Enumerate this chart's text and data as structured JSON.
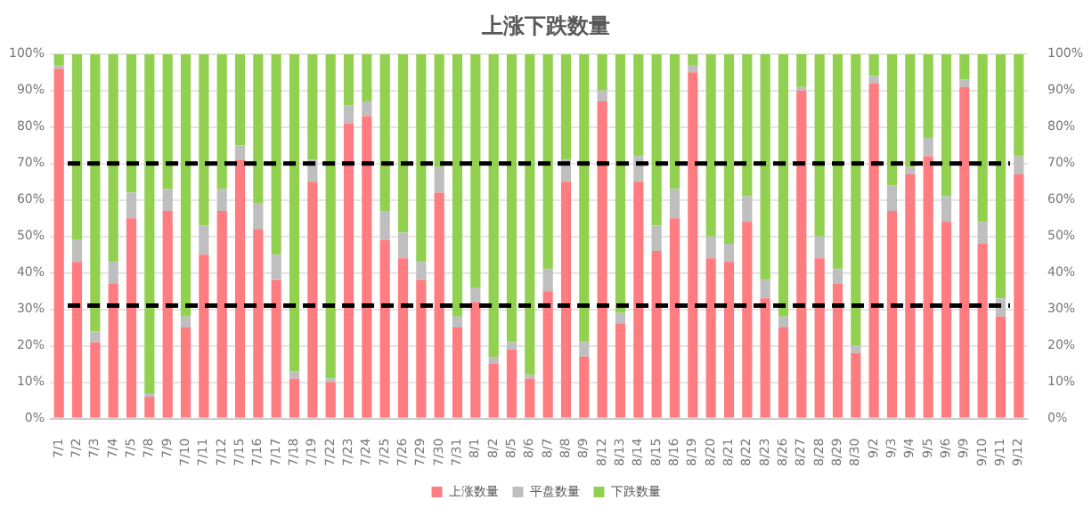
{
  "chart_data": {
    "type": "bar",
    "title": "上涨下跌数量",
    "stacked": true,
    "categories": [
      "7/1",
      "7/2",
      "7/3",
      "7/4",
      "7/5",
      "7/8",
      "7/9",
      "7/10",
      "7/11",
      "7/12",
      "7/15",
      "7/16",
      "7/17",
      "7/18",
      "7/19",
      "7/22",
      "7/23",
      "7/24",
      "7/25",
      "7/26",
      "7/29",
      "7/30",
      "7/31",
      "8/1",
      "8/2",
      "8/5",
      "8/6",
      "8/7",
      "8/8",
      "8/9",
      "8/12",
      "8/13",
      "8/14",
      "8/15",
      "8/16",
      "8/19",
      "8/20",
      "8/21",
      "8/22",
      "8/23",
      "8/26",
      "8/27",
      "8/28",
      "8/29",
      "8/30",
      "9/2",
      "9/3",
      "9/4",
      "9/5",
      "9/6",
      "9/9",
      "9/10",
      "9/11",
      "9/12"
    ],
    "series": [
      {
        "name": "上涨数量",
        "color": "#ff7c80",
        "values": [
          96,
          43,
          21,
          37,
          55,
          6,
          57,
          25,
          45,
          57,
          71,
          52,
          38,
          11,
          65,
          10,
          81,
          83,
          49,
          44,
          38,
          62,
          25,
          32,
          15,
          19,
          11,
          35,
          65,
          17,
          87,
          26,
          65,
          46,
          55,
          95,
          44,
          43,
          54,
          33,
          25,
          90,
          44,
          37,
          18,
          92,
          57,
          67,
          72,
          54,
          91,
          48,
          28,
          67
        ]
      },
      {
        "name": "平盘数量",
        "color": "#bfbfbf",
        "values": [
          1,
          6,
          3,
          6,
          7,
          1,
          6,
          3,
          8,
          6,
          4,
          7,
          7,
          2,
          6,
          1,
          5,
          4,
          8,
          7,
          5,
          7,
          3,
          4,
          2,
          2,
          1,
          6,
          6,
          4,
          3,
          3,
          7,
          7,
          8,
          2,
          6,
          5,
          7,
          5,
          3,
          1,
          6,
          4,
          2,
          2,
          7,
          2,
          5,
          7,
          2,
          6,
          5,
          5
        ]
      },
      {
        "name": "下跌数量",
        "color": "#92d050",
        "values": [
          3,
          51,
          76,
          57,
          38,
          93,
          37,
          72,
          47,
          37,
          25,
          41,
          55,
          87,
          29,
          89,
          14,
          13,
          43,
          49,
          57,
          31,
          72,
          64,
          83,
          79,
          88,
          59,
          29,
          79,
          10,
          71,
          28,
          47,
          37,
          3,
          50,
          52,
          39,
          62,
          72,
          9,
          50,
          59,
          80,
          6,
          36,
          31,
          23,
          39,
          7,
          46,
          67,
          28
        ]
      }
    ],
    "ylim": [
      0,
      100
    ],
    "yticks": [
      {
        "value": 0,
        "label": "0%"
      },
      {
        "value": 10,
        "label": "10%"
      },
      {
        "value": 20,
        "label": "20%"
      },
      {
        "value": 30,
        "label": "30%"
      },
      {
        "value": 40,
        "label": "40%"
      },
      {
        "value": 50,
        "label": "50%"
      },
      {
        "value": 60,
        "label": "60%"
      },
      {
        "value": 70,
        "label": "70%"
      },
      {
        "value": 80,
        "label": "80%"
      },
      {
        "value": 90,
        "label": "90%"
      },
      {
        "value": 100,
        "label": "100%"
      }
    ],
    "y2lim": [
      0,
      100
    ],
    "y2ticks": [
      {
        "value": 0,
        "label": "0%"
      },
      {
        "value": 10,
        "label": "10%"
      },
      {
        "value": 20,
        "label": "20%"
      },
      {
        "value": 30,
        "label": "30%"
      },
      {
        "value": 40,
        "label": "40%"
      },
      {
        "value": 50,
        "label": "50%"
      },
      {
        "value": 60,
        "label": "60%"
      },
      {
        "value": 70,
        "label": "70%"
      },
      {
        "value": 80,
        "label": "80%"
      },
      {
        "value": 90,
        "label": "90%"
      },
      {
        "value": 100,
        "label": "100%"
      }
    ],
    "ref_lines": [
      {
        "axis": "y",
        "value": 70,
        "color": "#000000",
        "line_style": "dashed"
      },
      {
        "axis": "y",
        "value": 31,
        "color": "#000000",
        "line_style": "dashed"
      }
    ],
    "grid": "y",
    "legend": "bottom"
  }
}
